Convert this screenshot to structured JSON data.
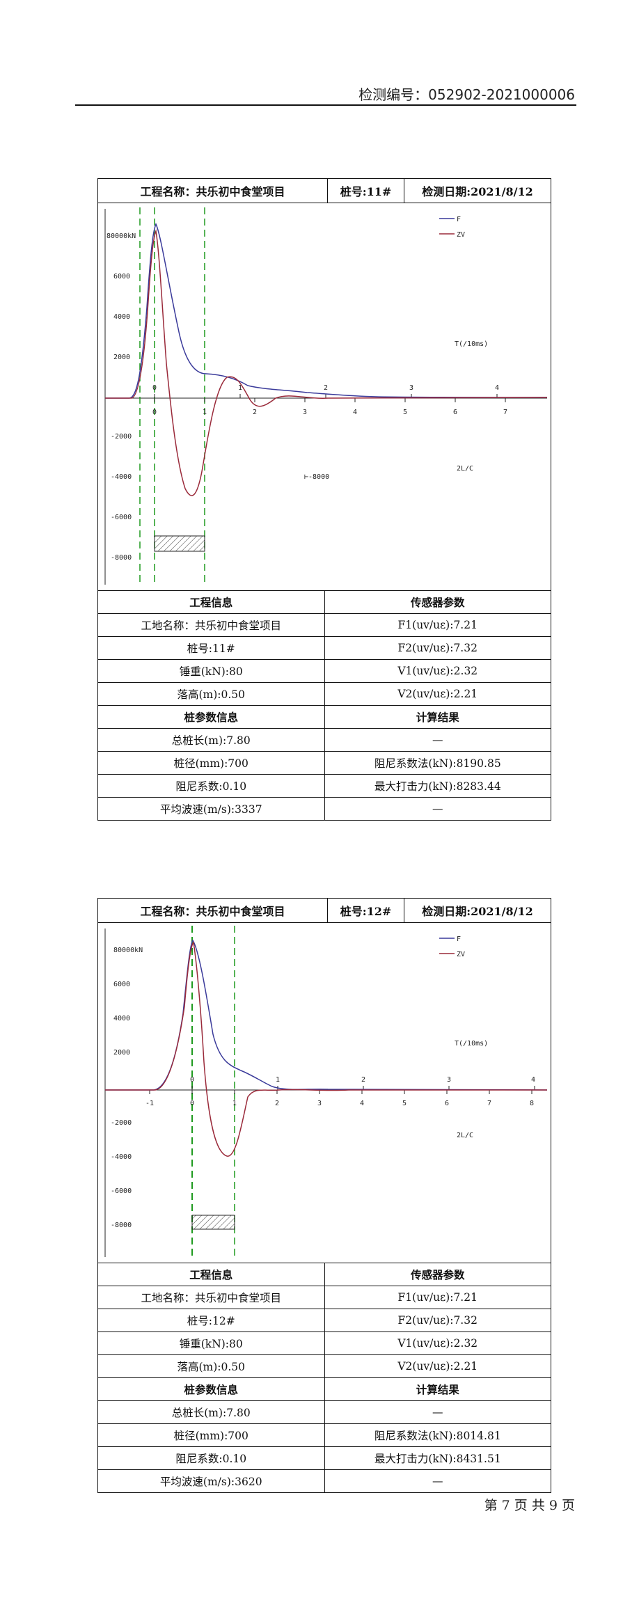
{
  "header": {
    "report_no": "检测编号：052902-2021000006"
  },
  "footer": {
    "page": "第 7 页 共 9 页"
  },
  "colors": {
    "F": "#3a3a9a",
    "ZV": "#9a2a3a",
    "marker": "#1f9a1f"
  },
  "tests": [
    {
      "title": "工程名称：共乐初中食堂项目",
      "pile": "桩号:11#",
      "date": "检测日期:2021/8/12",
      "chart": {
        "ylabels": [
          "80000kN",
          "6000",
          "4000",
          "2000",
          "-2000",
          "-4000",
          "-6000",
          "-8000"
        ],
        "xlabels_bottom": [
          "0",
          "1",
          "2",
          "3",
          "4",
          "5",
          "6",
          "7"
        ],
        "xlabels_top": [
          "0",
          "1",
          "2",
          "3",
          "4"
        ],
        "legend": [
          "F",
          "ZV"
        ],
        "time_label": "T(/10ms)",
        "ratio_label": "2L/C",
        "scale_note": "⊢-8000"
      },
      "info": {
        "project_head": "工程信息",
        "sensor_head": "传感器参数",
        "site": "工地名称：共乐初中食堂项目",
        "pile_no": "桩号:11#",
        "F1": "F1(uv/uε):7.21",
        "F2": "F2(uv/uε):7.32",
        "hammer": "锤重(kN):80",
        "V1": "V1(uv/uε):2.32",
        "drop": "落高(m):0.50",
        "V2": "V2(uv/uε):2.21",
        "pile_param_head": "桩参数信息",
        "calc_head": "计算结果",
        "length": "总桩长(m):7.80",
        "dash1": "—",
        "diameter": "桩径(mm):700",
        "damping_method": "阻尼系数法(kN):8190.85",
        "damping": "阻尼系数:0.10",
        "max_force": "最大打击力(kN):8283.44",
        "wave_speed": "平均波速(m/s):3337",
        "dash2": "—"
      }
    },
    {
      "title": "工程名称：共乐初中食堂项目",
      "pile": "桩号:12#",
      "date": "检测日期:2021/8/12",
      "chart": {
        "ylabels": [
          "80000kN",
          "6000",
          "4000",
          "2000",
          "-2000",
          "-4000",
          "-6000",
          "-8000"
        ],
        "xlabels_bottom": [
          "-1",
          "0",
          "1",
          "2",
          "3",
          "4",
          "5",
          "6",
          "7",
          "8"
        ],
        "xlabels_top": [
          "0",
          "1",
          "2",
          "3",
          "4"
        ],
        "legend": [
          "F",
          "ZV"
        ],
        "time_label": "T(/10ms)",
        "ratio_label": "2L/C"
      },
      "info": {
        "project_head": "工程信息",
        "sensor_head": "传感器参数",
        "site": "工地名称：共乐初中食堂项目",
        "pile_no": "桩号:12#",
        "F1": "F1(uv/uε):7.21",
        "F2": "F2(uv/uε):7.32",
        "hammer": "锤重(kN):80",
        "V1": "V1(uv/uε):2.32",
        "drop": "落高(m):0.50",
        "V2": "V2(uv/uε):2.21",
        "pile_param_head": "桩参数信息",
        "calc_head": "计算结果",
        "length": "总桩长(m):7.80",
        "dash1": "—",
        "diameter": "桩径(mm):700",
        "damping_method": "阻尼系数法(kN):8014.81",
        "damping": "阻尼系数:0.10",
        "max_force": "最大打击力(kN):8431.51",
        "wave_speed": "平均波速(m/s):3620",
        "dash2": "—"
      }
    }
  ]
}
